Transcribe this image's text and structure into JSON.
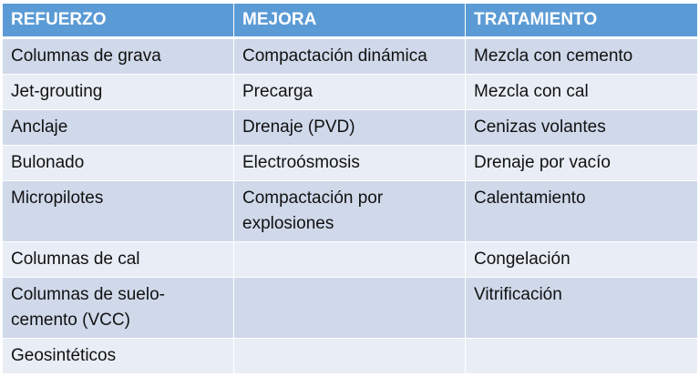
{
  "headers": [
    "REFUERZO",
    "MEJORA",
    "TRATAMIENTO"
  ],
  "rows": [
    [
      "Columnas de grava",
      "Compactación dinámica",
      "Mezcla con cemento"
    ],
    [
      "Jet-grouting",
      "Precarga",
      "Mezcla con cal"
    ],
    [
      "Anclaje",
      "Drenaje (PVD)",
      "Cenizas volantes"
    ],
    [
      "Bulonado",
      "Electroósmosis",
      "Drenaje por vacío"
    ],
    [
      "Micropilotes",
      "Compactación por explosiones",
      "Calentamiento"
    ],
    [
      "Columnas de cal",
      "",
      "Congelación"
    ],
    [
      "Columnas de suelo-cemento (VCC)",
      "",
      "Vitrificación"
    ],
    [
      "Geosintéticos",
      "",
      ""
    ]
  ],
  "colors": {
    "header": "#5b9bd5",
    "row_dark": "#cfd9ea",
    "row_light": "#e9eef6"
  }
}
